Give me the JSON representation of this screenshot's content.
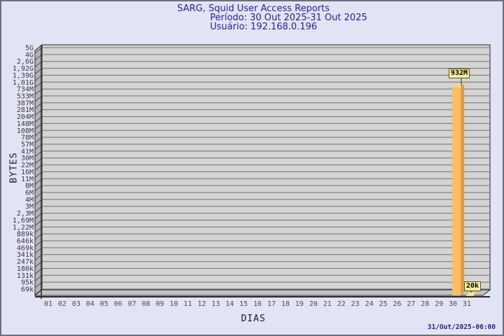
{
  "header": {
    "line1": "SARG, Squid User Access Reports",
    "line2": "Período: 30 Out 2025-31 Out 2025",
    "line3": "Usuário: 192.168.0.196"
  },
  "footer": {
    "timestamp": "31/Out/2025-06:00"
  },
  "chart_data": {
    "type": "bar",
    "title": "SARG, Squid User Access Reports",
    "subtitle": "Período: 30 Out 2025-31 Out 2025",
    "user": "Usuário: 192.168.0.196",
    "xlabel": "DIAS",
    "ylabel": "BYTES",
    "scale": "log",
    "ylim": [
      "69k",
      "5G"
    ],
    "grid": true,
    "y_ticks": [
      "5G",
      "4G",
      "2,6G",
      "1,92G",
      "1,39G",
      "1,01G",
      "734M",
      "533M",
      "387M",
      "281M",
      "204M",
      "148M",
      "108M",
      "78M",
      "57M",
      "41M",
      "30M",
      "22M",
      "16M",
      "11M",
      "8M",
      "6M",
      "4M",
      "3M",
      "2,3M",
      "1,69M",
      "1,22M",
      "889k",
      "646k",
      "469k",
      "341k",
      "247k",
      "180k",
      "131k",
      "95k",
      "69k"
    ],
    "x_categories": [
      "01",
      "02",
      "03",
      "04",
      "05",
      "06",
      "07",
      "08",
      "09",
      "10",
      "11",
      "12",
      "13",
      "14",
      "15",
      "16",
      "17",
      "18",
      "19",
      "20",
      "21",
      "22",
      "23",
      "24",
      "25",
      "26",
      "27",
      "28",
      "29",
      "30",
      "31"
    ],
    "bars": [
      {
        "day": "30",
        "label": "932M",
        "value": 932000000
      },
      {
        "day": "31",
        "label": "20k",
        "value": 20000
      }
    ],
    "colors": {
      "background": "#e3e3f6",
      "title_color": "#2122a0",
      "plot_face": "#d4d4d4",
      "grid_line": "#6f6f6f",
      "wall": "#b4b4b4",
      "floor": "#c2c2c2",
      "axis": "#2a2a2a",
      "bar_face": "#fcbe62",
      "bar_side": "#d89f48",
      "bar_top": "#fdd28a",
      "stub": "#ede79a",
      "label_box_bg": "#f4ef9e",
      "label_box_border": "#5c5c14",
      "tick_text": "#3a3a3a"
    }
  }
}
